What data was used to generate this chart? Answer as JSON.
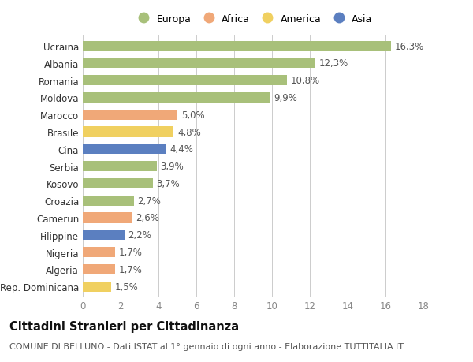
{
  "countries": [
    "Ucraina",
    "Albania",
    "Romania",
    "Moldova",
    "Marocco",
    "Brasile",
    "Cina",
    "Serbia",
    "Kosovo",
    "Croazia",
    "Camerun",
    "Filippine",
    "Nigeria",
    "Algeria",
    "Rep. Dominicana"
  ],
  "values": [
    16.3,
    12.3,
    10.8,
    9.9,
    5.0,
    4.8,
    4.4,
    3.9,
    3.7,
    2.7,
    2.6,
    2.2,
    1.7,
    1.7,
    1.5
  ],
  "labels": [
    "16,3%",
    "12,3%",
    "10,8%",
    "9,9%",
    "5,0%",
    "4,8%",
    "4,4%",
    "3,9%",
    "3,7%",
    "2,7%",
    "2,6%",
    "2,2%",
    "1,7%",
    "1,7%",
    "1,5%"
  ],
  "continents": [
    "Europa",
    "Europa",
    "Europa",
    "Europa",
    "Africa",
    "America",
    "Asia",
    "Europa",
    "Europa",
    "Europa",
    "Africa",
    "Asia",
    "Africa",
    "Africa",
    "America"
  ],
  "colors": {
    "Europa": "#a8c07a",
    "Africa": "#f0a878",
    "America": "#f0d060",
    "Asia": "#5b7fc0"
  },
  "legend_order": [
    "Europa",
    "Africa",
    "America",
    "Asia"
  ],
  "xlim": [
    0,
    18
  ],
  "xticks": [
    0,
    2,
    4,
    6,
    8,
    10,
    12,
    14,
    16,
    18
  ],
  "title": "Cittadini Stranieri per Cittadinanza",
  "subtitle": "COMUNE DI BELLUNO - Dati ISTAT al 1° gennaio di ogni anno - Elaborazione TUTTITALIA.IT",
  "bg_color": "#ffffff",
  "grid_color": "#cccccc",
  "bar_height": 0.6,
  "label_fontsize": 8.5,
  "tick_fontsize": 8.5,
  "title_fontsize": 10.5,
  "subtitle_fontsize": 8
}
